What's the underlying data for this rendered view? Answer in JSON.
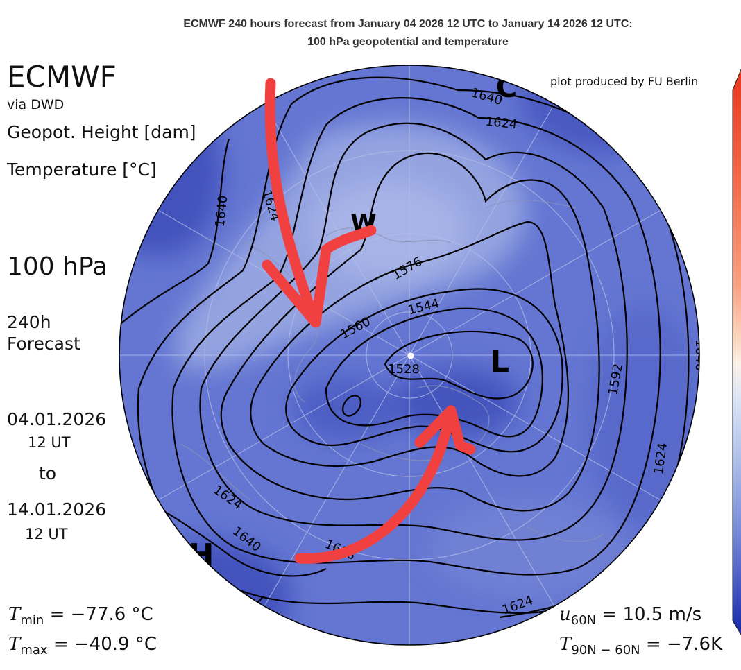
{
  "title": {
    "line1": "ECMWF 240 hours forecast from January 04 2026 12 UTC to January 14 2026 12 UTC:",
    "line2": "100 hPa geopotential and temperature"
  },
  "left_panel": {
    "brand": "ECMWF",
    "source": "via DWD",
    "field1": "Geopot. Height [dam]",
    "field2": "Temperature [°C]",
    "level": "100 hPa",
    "forecast_line1": "240h",
    "forecast_line2": "Forecast",
    "start_date": "04.01.2026",
    "start_time": "12 UT",
    "to_word": "to",
    "end_date": "14.01.2026",
    "end_time": "12 UT"
  },
  "credit": "plot produced by FU Berlin",
  "stats": {
    "tmin_symbol": "T",
    "tmin_sub": "min",
    "tmin_value": "= −77.6 °C",
    "tmax_symbol": "T",
    "tmax_sub": "max",
    "tmax_value": "= −40.9 °C",
    "u_symbol": "u",
    "u_sub": "60N",
    "u_value": "= 10.5 m/s",
    "t_symbol": "T",
    "t_sub": "90N − 60N",
    "t_value": "= −7.6K"
  },
  "map": {
    "projection": "polar stereographic, North Pole centred",
    "contour_labels": [
      "1640",
      "1624",
      "1640",
      "1624",
      "1576",
      "1544",
      "1560",
      "1528",
      "1592",
      "1640",
      "1624",
      "1624",
      "1640",
      "1608",
      "1624"
    ],
    "pressure_centers": [
      "W",
      "L",
      "H",
      "C"
    ],
    "colors": {
      "background_blue": "#6476d2",
      "deep_blue": "#3c4cb8",
      "light_blue": "#9aa8e2",
      "contour": "#000000",
      "annotation_arrows": "#f04040"
    },
    "annotations": "two hand-drawn red arrows converging toward the central low"
  },
  "colorbar": {
    "colors_top_to_bottom": [
      "#e8361e",
      "#f26a4a",
      "#f7a080",
      "#fbd8c0",
      "#fdf2e8",
      "#dde6f7",
      "#a9bbe8",
      "#7589d6",
      "#4253c0",
      "#1428a8"
    ]
  }
}
